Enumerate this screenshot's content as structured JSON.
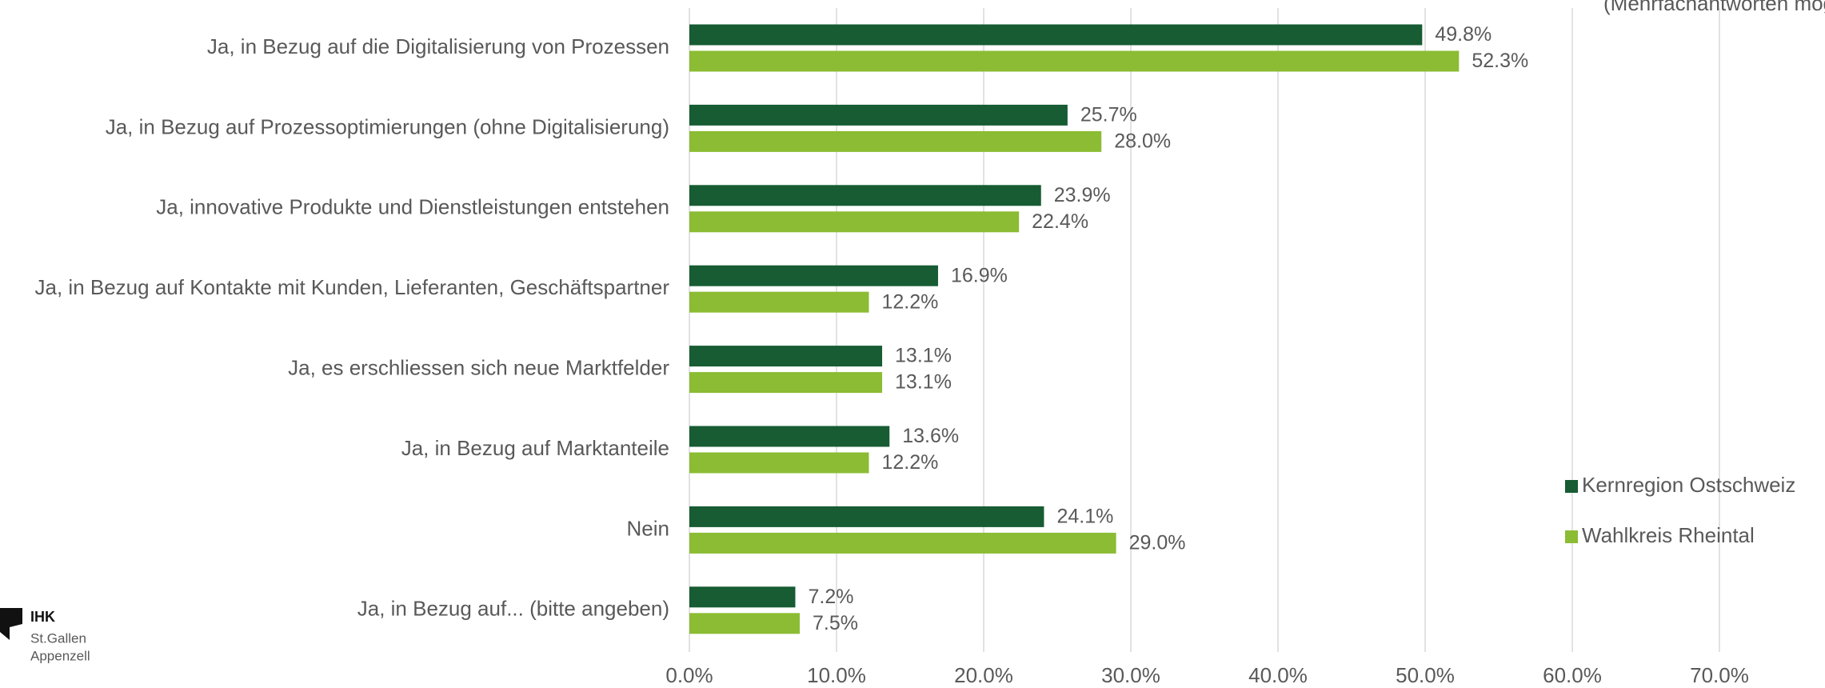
{
  "chart_data": {
    "type": "bar",
    "orientation": "horizontal",
    "subtitle": "(Mehrfachantworten möglich)",
    "logo": {
      "name": "IHK",
      "lines": [
        "St.Gallen",
        "Appenzell"
      ]
    },
    "categories": [
      "Ja, in Bezug auf die Digitalisierung von Prozessen",
      "Ja, in Bezug auf Prozessoptimierungen (ohne Digitalisierung)",
      "Ja, innovative Produkte und Dienstleistungen entstehen",
      "Ja, in Bezug auf Kontakte mit Kunden, Lieferanten, Geschäftspartner",
      "Ja, es erschliessen sich neue Marktfelder",
      "Ja, in Bezug auf Marktanteile",
      "Nein",
      "Ja, in Bezug auf... (bitte angeben)"
    ],
    "series": [
      {
        "name": "Kernregion Ostschweiz",
        "color": "#175c33",
        "values": [
          49.8,
          25.7,
          23.9,
          16.9,
          13.1,
          13.6,
          24.1,
          7.2
        ],
        "value_labels": [
          "49.8%",
          "25.7%",
          "23.9%",
          "16.9%",
          "13.1%",
          "13.6%",
          "24.1%",
          "7.2%"
        ]
      },
      {
        "name": "Wahlkreis Rheintal",
        "color": "#8bbc33",
        "values": [
          52.3,
          28.0,
          22.4,
          12.2,
          13.1,
          12.2,
          29.0,
          7.5
        ],
        "value_labels": [
          "52.3%",
          "28.0%",
          "22.4%",
          "12.2%",
          "13.1%",
          "12.2%",
          "29.0%",
          "7.5%"
        ]
      }
    ],
    "xlim": [
      0,
      70
    ],
    "xticks": [
      {
        "value": 0,
        "label": "0.0%"
      },
      {
        "value": 10,
        "label": "10.0%"
      },
      {
        "value": 20,
        "label": "20.0%"
      },
      {
        "value": 30,
        "label": "30.0%"
      },
      {
        "value": 40,
        "label": "40.0%"
      },
      {
        "value": 50,
        "label": "50.0%"
      },
      {
        "value": 60,
        "label": "60.0%"
      },
      {
        "value": 70,
        "label": "70.0%"
      }
    ],
    "grid": true,
    "legend": "right"
  }
}
